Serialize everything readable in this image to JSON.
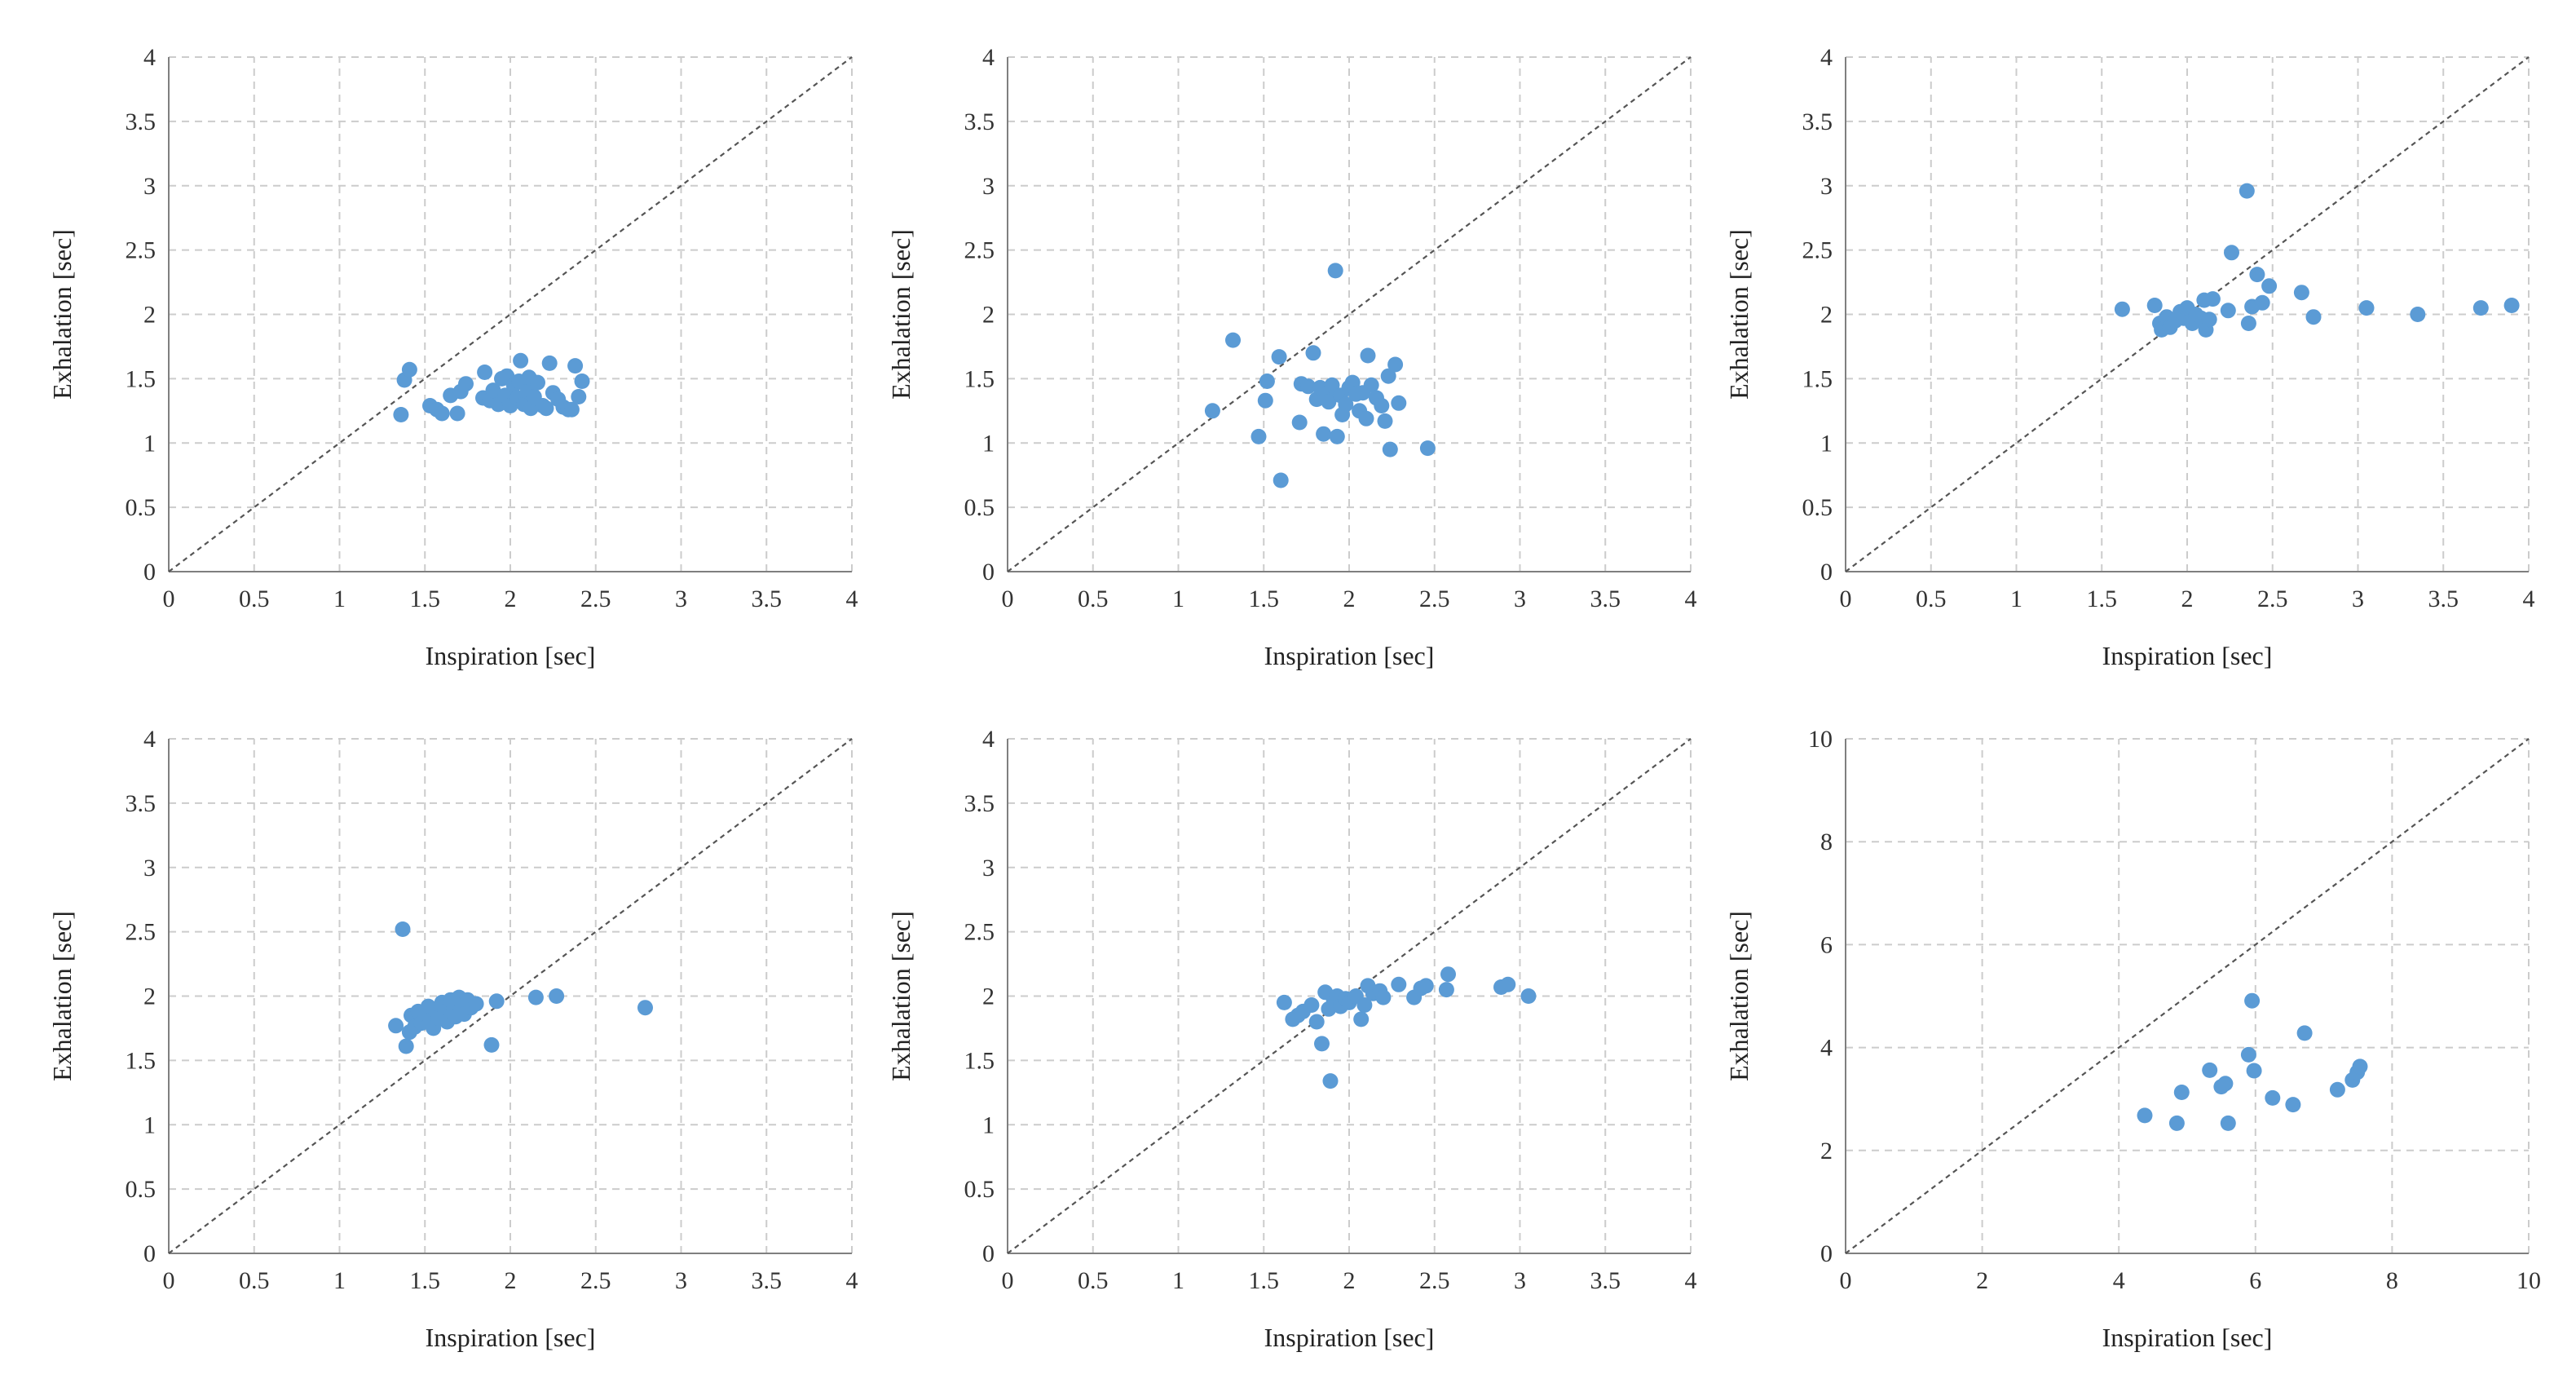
{
  "chart_data": [
    {
      "type": "scatter",
      "xlabel": "Inspiration [sec]",
      "ylabel": "Exhalation [sec]",
      "xlim": [
        0,
        4
      ],
      "ylim": [
        0,
        4
      ],
      "xticks": [
        "0",
        "0.5",
        "1",
        "1.5",
        "2",
        "2.5",
        "3",
        "3.5",
        "4"
      ],
      "yticks": [
        "0",
        "0.5",
        "1",
        "1.5",
        "2",
        "2.5",
        "3",
        "3.5",
        "4"
      ],
      "grid": true,
      "reference_line": "y = x",
      "points": [
        [
          1.36,
          1.22
        ],
        [
          1.38,
          1.49
        ],
        [
          1.41,
          1.57
        ],
        [
          1.53,
          1.29
        ],
        [
          1.57,
          1.26
        ],
        [
          1.6,
          1.23
        ],
        [
          1.65,
          1.37
        ],
        [
          1.69,
          1.23
        ],
        [
          1.71,
          1.4
        ],
        [
          1.74,
          1.46
        ],
        [
          1.84,
          1.35
        ],
        [
          1.85,
          1.55
        ],
        [
          1.88,
          1.33
        ],
        [
          1.9,
          1.41
        ],
        [
          1.93,
          1.3
        ],
        [
          1.95,
          1.5
        ],
        [
          1.97,
          1.37
        ],
        [
          1.98,
          1.52
        ],
        [
          2.0,
          1.29
        ],
        [
          2.02,
          1.45
        ],
        [
          2.04,
          1.35
        ],
        [
          2.05,
          1.48
        ],
        [
          2.06,
          1.64
        ],
        [
          2.08,
          1.3
        ],
        [
          2.1,
          1.4
        ],
        [
          2.11,
          1.51
        ],
        [
          2.12,
          1.27
        ],
        [
          2.14,
          1.36
        ],
        [
          2.16,
          1.47
        ],
        [
          2.19,
          1.29
        ],
        [
          2.21,
          1.27
        ],
        [
          2.23,
          1.62
        ],
        [
          2.25,
          1.39
        ],
        [
          2.28,
          1.34
        ],
        [
          2.31,
          1.28
        ],
        [
          2.34,
          1.26
        ],
        [
          2.36,
          1.26
        ],
        [
          2.38,
          1.6
        ],
        [
          2.4,
          1.36
        ],
        [
          2.42,
          1.48
        ]
      ]
    },
    {
      "type": "scatter",
      "xlabel": "Inspiration [sec]",
      "ylabel": "Exhalation [sec]",
      "xlim": [
        0,
        4
      ],
      "ylim": [
        0,
        4
      ],
      "xticks": [
        "0",
        "0.5",
        "1",
        "1.5",
        "2",
        "2.5",
        "3",
        "3.5",
        "4"
      ],
      "yticks": [
        "0",
        "0.5",
        "1",
        "1.5",
        "2",
        "2.5",
        "3",
        "3.5",
        "4"
      ],
      "grid": true,
      "reference_line": "y = x",
      "points": [
        [
          1.2,
          1.25
        ],
        [
          1.32,
          1.8
        ],
        [
          1.47,
          1.05
        ],
        [
          1.51,
          1.33
        ],
        [
          1.52,
          1.48
        ],
        [
          1.59,
          1.67
        ],
        [
          1.6,
          0.71
        ],
        [
          1.71,
          1.16
        ],
        [
          1.72,
          1.46
        ],
        [
          1.76,
          1.44
        ],
        [
          1.79,
          1.7
        ],
        [
          1.81,
          1.34
        ],
        [
          1.83,
          1.43
        ],
        [
          1.85,
          1.07
        ],
        [
          1.87,
          1.38
        ],
        [
          1.88,
          1.32
        ],
        [
          1.9,
          1.45
        ],
        [
          1.92,
          2.34
        ],
        [
          1.93,
          1.05
        ],
        [
          1.95,
          1.37
        ],
        [
          1.96,
          1.22
        ],
        [
          1.98,
          1.3
        ],
        [
          2.0,
          1.43
        ],
        [
          2.02,
          1.47
        ],
        [
          2.04,
          1.38
        ],
        [
          2.06,
          1.25
        ],
        [
          2.08,
          1.39
        ],
        [
          2.1,
          1.19
        ],
        [
          2.11,
          1.68
        ],
        [
          2.13,
          1.45
        ],
        [
          2.16,
          1.35
        ],
        [
          2.19,
          1.29
        ],
        [
          2.21,
          1.17
        ],
        [
          2.23,
          1.52
        ],
        [
          2.24,
          0.95
        ],
        [
          2.27,
          1.61
        ],
        [
          2.29,
          1.31
        ],
        [
          2.46,
          0.96
        ]
      ]
    },
    {
      "type": "scatter",
      "xlabel": "Inspiration [sec]",
      "ylabel": "Exhalation [sec]",
      "xlim": [
        0,
        4
      ],
      "ylim": [
        0,
        4
      ],
      "xticks": [
        "0",
        "0.5",
        "1",
        "1.5",
        "2",
        "2.5",
        "3",
        "3.5",
        "4"
      ],
      "yticks": [
        "0",
        "0.5",
        "1",
        "1.5",
        "2",
        "2.5",
        "3",
        "3.5",
        "4"
      ],
      "grid": true,
      "reference_line": "y = x",
      "points": [
        [
          1.62,
          2.04
        ],
        [
          1.81,
          2.07
        ],
        [
          1.84,
          1.93
        ],
        [
          1.85,
          1.88
        ],
        [
          1.88,
          1.98
        ],
        [
          1.9,
          1.9
        ],
        [
          1.93,
          1.95
        ],
        [
          1.96,
          2.02
        ],
        [
          1.98,
          1.97
        ],
        [
          2.0,
          2.05
        ],
        [
          2.03,
          1.93
        ],
        [
          2.05,
          2.0
        ],
        [
          2.08,
          1.97
        ],
        [
          2.1,
          2.11
        ],
        [
          2.11,
          1.88
        ],
        [
          2.13,
          1.96
        ],
        [
          2.15,
          2.12
        ],
        [
          2.24,
          2.03
        ],
        [
          2.26,
          2.48
        ],
        [
          2.35,
          2.96
        ],
        [
          2.36,
          1.93
        ],
        [
          2.38,
          2.06
        ],
        [
          2.41,
          2.31
        ],
        [
          2.44,
          2.09
        ],
        [
          2.48,
          2.22
        ],
        [
          2.67,
          2.17
        ],
        [
          2.74,
          1.98
        ],
        [
          3.05,
          2.05
        ],
        [
          3.35,
          2.0
        ],
        [
          3.72,
          2.05
        ],
        [
          3.9,
          2.07
        ]
      ]
    },
    {
      "type": "scatter",
      "xlabel": "Inspiration [sec]",
      "ylabel": "Exhalation [sec]",
      "xlim": [
        0,
        4
      ],
      "ylim": [
        0,
        4
      ],
      "xticks": [
        "0",
        "0.5",
        "1",
        "1.5",
        "2",
        "2.5",
        "3",
        "3.5",
        "4"
      ],
      "yticks": [
        "0",
        "0.5",
        "1",
        "1.5",
        "2",
        "2.5",
        "3",
        "3.5",
        "4"
      ],
      "grid": true,
      "reference_line": "y = x",
      "points": [
        [
          1.33,
          1.77
        ],
        [
          1.37,
          2.52
        ],
        [
          1.39,
          1.61
        ],
        [
          1.41,
          1.72
        ],
        [
          1.42,
          1.85
        ],
        [
          1.44,
          1.76
        ],
        [
          1.46,
          1.88
        ],
        [
          1.48,
          1.79
        ],
        [
          1.5,
          1.86
        ],
        [
          1.52,
          1.92
        ],
        [
          1.53,
          1.81
        ],
        [
          1.55,
          1.75
        ],
        [
          1.56,
          1.9
        ],
        [
          1.58,
          1.83
        ],
        [
          1.6,
          1.95
        ],
        [
          1.62,
          1.88
        ],
        [
          1.63,
          1.8
        ],
        [
          1.65,
          1.97
        ],
        [
          1.67,
          1.91
        ],
        [
          1.68,
          1.84
        ],
        [
          1.7,
          1.99
        ],
        [
          1.72,
          1.93
        ],
        [
          1.73,
          1.86
        ],
        [
          1.75,
          1.97
        ],
        [
          1.77,
          1.91
        ],
        [
          1.8,
          1.94
        ],
        [
          1.89,
          1.62
        ],
        [
          1.92,
          1.96
        ],
        [
          2.15,
          1.99
        ],
        [
          2.27,
          2.0
        ],
        [
          2.79,
          1.91
        ]
      ]
    },
    {
      "type": "scatter",
      "xlabel": "Inspiration [sec]",
      "ylabel": "Exhalation [sec]",
      "xlim": [
        0,
        4
      ],
      "ylim": [
        0,
        4
      ],
      "xticks": [
        "0",
        "0.5",
        "1",
        "1.5",
        "2",
        "2.5",
        "3",
        "3.5",
        "4"
      ],
      "yticks": [
        "0",
        "0.5",
        "1",
        "1.5",
        "2",
        "2.5",
        "3",
        "3.5",
        "4"
      ],
      "grid": true,
      "reference_line": "y = x",
      "points": [
        [
          1.62,
          1.95
        ],
        [
          1.67,
          1.82
        ],
        [
          1.7,
          1.85
        ],
        [
          1.73,
          1.88
        ],
        [
          1.78,
          1.93
        ],
        [
          1.81,
          1.8
        ],
        [
          1.84,
          1.63
        ],
        [
          1.86,
          2.03
        ],
        [
          1.88,
          1.9
        ],
        [
          1.89,
          1.34
        ],
        [
          1.91,
          1.97
        ],
        [
          1.93,
          2.0
        ],
        [
          1.95,
          1.92
        ],
        [
          1.98,
          1.98
        ],
        [
          2.0,
          1.95
        ],
        [
          2.04,
          2.0
        ],
        [
          2.07,
          1.82
        ],
        [
          2.09,
          1.93
        ],
        [
          2.11,
          2.08
        ],
        [
          2.14,
          2.02
        ],
        [
          2.18,
          2.04
        ],
        [
          2.2,
          1.99
        ],
        [
          2.29,
          2.09
        ],
        [
          2.38,
          1.99
        ],
        [
          2.42,
          2.06
        ],
        [
          2.45,
          2.08
        ],
        [
          2.57,
          2.05
        ],
        [
          2.58,
          2.17
        ],
        [
          2.89,
          2.07
        ],
        [
          2.93,
          2.09
        ],
        [
          3.05,
          2.0
        ]
      ]
    },
    {
      "type": "scatter",
      "xlabel": "Inspiration [sec]",
      "ylabel": "Exhalation [sec]",
      "xlim": [
        0,
        10
      ],
      "ylim": [
        0,
        10
      ],
      "xticks": [
        "0",
        "2",
        "4",
        "6",
        "8",
        "10"
      ],
      "yticks": [
        "0",
        "2",
        "4",
        "6",
        "8",
        "10"
      ],
      "grid": true,
      "reference_line": "y = x",
      "points": [
        [
          4.38,
          2.68
        ],
        [
          4.85,
          2.53
        ],
        [
          4.92,
          3.13
        ],
        [
          5.33,
          3.56
        ],
        [
          5.5,
          3.24
        ],
        [
          5.56,
          3.3
        ],
        [
          5.6,
          2.53
        ],
        [
          5.9,
          3.86
        ],
        [
          5.95,
          4.91
        ],
        [
          5.98,
          3.55
        ],
        [
          6.25,
          3.02
        ],
        [
          6.55,
          2.89
        ],
        [
          6.72,
          4.28
        ],
        [
          7.2,
          3.18
        ],
        [
          7.42,
          3.37
        ],
        [
          7.49,
          3.52
        ],
        [
          7.53,
          3.63
        ]
      ]
    }
  ],
  "colors": {
    "marker": "#5b9bd5",
    "grid": "#cccccc",
    "axis": "#7f7f7f",
    "reference": "#555555"
  }
}
